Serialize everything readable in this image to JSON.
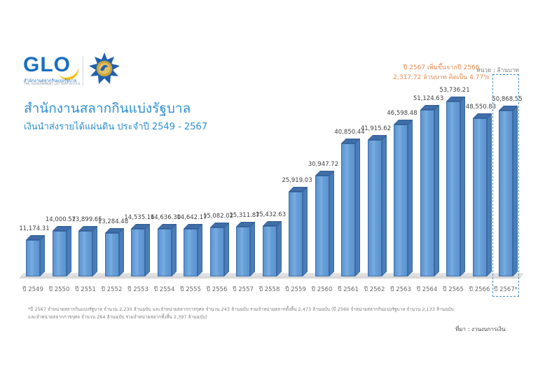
{
  "header": {
    "logo_text": "GLO",
    "logo_sub_thai": "สำนักงานสลากกินแบ่งรัฐบาล",
    "logo_sub_en": "THE GOVERNMENT LOTTERY OFFICE",
    "title": "สำนักงานสลากกินแบ่งรัฐบาล",
    "subtitle": "เงินนำส่งรายได้แผ่นดิน ประจำปี 2549 - 2567"
  },
  "annotation": {
    "line1": "ปี 2567 เพิ่มขึ้นจากปี 2566",
    "line2": "2,317.72 ล้านบาท คิดเป็น 4.77%",
    "unit": "หน่วย : ล้านบาท"
  },
  "footnote": {
    "line1": "*ปี 2567 จำหน่ายสลากกินแบ่งรัฐบาล จำนวน 2,230 ล้านฉบับ  และจำหน่ายสลากการกุศล จำนวน 243 ล้านฉบับ รวมจำหน่ายสลากทั้งสิ้น 2,473 ล้านฉบับ  (ปี 2566 จำหน่ายสลากกินแบ่งรัฐบาล จำนวน 2,133 ล้านฉบับ",
    "line2": "และจำหน่ายสลากการกุศล จำนวน 264 ล้านฉบับ รวมจำหน่ายสลากทั้งสิ้น 2,397 ล้านฉบับ)",
    "source": "ที่มา : งานงบการเงิน"
  },
  "colors": {
    "bar": "#6aa0d8",
    "title": "#2f8fd0",
    "annotation": "#e8894f"
  },
  "chart_data": {
    "type": "bar",
    "title": "เงินนำส่งรายได้แผ่นดิน ประจำปี 2549 - 2567",
    "xlabel": "",
    "ylabel": "ล้านบาท",
    "ylim": [
      0,
      55000
    ],
    "grid": false,
    "legend": "none",
    "categories": [
      "ปี 2549",
      "ปี 2550",
      "ปี 2551",
      "ปี 2552",
      "ปี 2553",
      "ปี 2554",
      "ปี 2555",
      "ปี 2556",
      "ปี 2557",
      "ปี 2558",
      "ปี 2559",
      "ปี 2560",
      "ปี 2561",
      "ปี 2562",
      "ปี 2563",
      "ปี 2564",
      "ปี 2565",
      "ปี 2566",
      "ปี 2567*"
    ],
    "values": [
      11174.31,
      14000.57,
      13899.65,
      13284.48,
      14535.16,
      14636.3,
      14642.17,
      15082.02,
      15311.87,
      15432.63,
      25919.03,
      30947.72,
      40850.44,
      41915.62,
      46598.48,
      51124.63,
      53736.21,
      48550.83,
      50868.55
    ],
    "labels": [
      "11,174.31",
      "14,000.57",
      "13,899.65",
      "13,284.48",
      "14,535.16",
      "14,636.30",
      "14,642.17",
      "15,082.02",
      "15,311.87",
      "15,432.63",
      "25,919.03",
      "30,947.72",
      "40,850.44",
      "41,915.62",
      "46,598.48",
      "51,124.63",
      "53,736.21",
      "48,550.83",
      "50,868.55"
    ],
    "annotations": [
      "ปี 2567 เพิ่มขึ้นจากปี 2566 2,317.72 ล้านบาท คิดเป็น 4.77%"
    ]
  }
}
